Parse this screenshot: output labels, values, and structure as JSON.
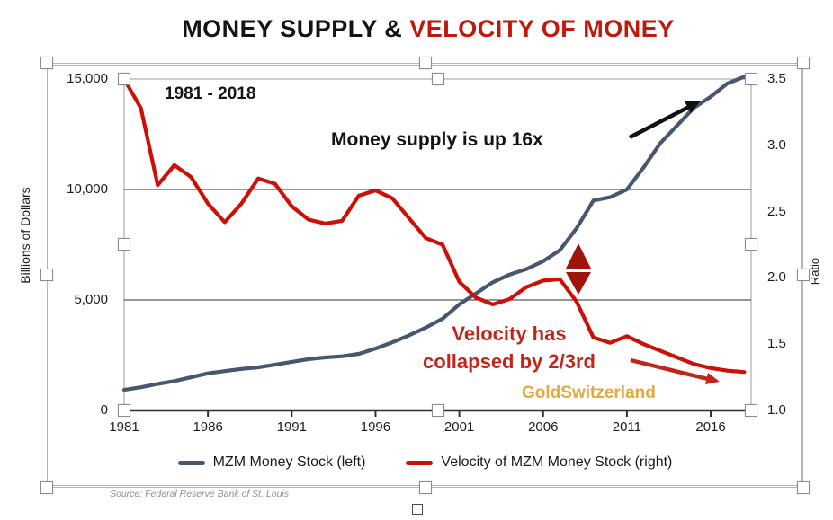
{
  "title": {
    "part_black": "MONEY SUPPLY & ",
    "part_red": "VELOCITY OF MONEY"
  },
  "chart_data": {
    "type": "line",
    "title": "MONEY SUPPLY & VELOCITY OF MONEY",
    "period_label": "1981 - 2018",
    "x": [
      1981,
      1982,
      1983,
      1984,
      1985,
      1986,
      1987,
      1988,
      1989,
      1990,
      1991,
      1992,
      1993,
      1994,
      1995,
      1996,
      1997,
      1998,
      1999,
      2000,
      2001,
      2002,
      2003,
      2004,
      2005,
      2006,
      2007,
      2008,
      2009,
      2010,
      2011,
      2012,
      2013,
      2014,
      2015,
      2016,
      2017,
      2018
    ],
    "series": [
      {
        "name": "MZM Money Stock (left)",
        "axis": "left",
        "color": "#46586f",
        "values": [
          930,
          1050,
          1200,
          1330,
          1500,
          1680,
          1780,
          1880,
          1950,
          2070,
          2200,
          2320,
          2400,
          2450,
          2560,
          2800,
          3080,
          3400,
          3750,
          4150,
          4800,
          5300,
          5800,
          6150,
          6400,
          6750,
          7250,
          8250,
          9500,
          9650,
          10000,
          11000,
          12100,
          12900,
          13700,
          14200,
          14800,
          15100
        ]
      },
      {
        "name": "Velocity of MZM Money Stock (right)",
        "axis": "right",
        "color": "#cc1005",
        "values": [
          3.5,
          3.28,
          2.7,
          2.85,
          2.76,
          2.56,
          2.42,
          2.56,
          2.75,
          2.71,
          2.54,
          2.44,
          2.41,
          2.43,
          2.62,
          2.66,
          2.6,
          2.45,
          2.3,
          2.25,
          1.97,
          1.85,
          1.8,
          1.84,
          1.93,
          1.98,
          1.99,
          1.82,
          1.55,
          1.51,
          1.56,
          1.5,
          1.45,
          1.4,
          1.35,
          1.32,
          1.3,
          1.29
        ]
      }
    ],
    "left_axis": {
      "label": "Billions of Dollars",
      "range": [
        0,
        15000
      ],
      "ticks": [
        {
          "value": 0,
          "label": "0"
        },
        {
          "value": 5000,
          "label": "5,000"
        },
        {
          "value": 10000,
          "label": "10,000"
        },
        {
          "value": 15000,
          "label": "15,000"
        }
      ]
    },
    "right_axis": {
      "label": "Ratio",
      "range": [
        1.0,
        3.5
      ],
      "ticks": [
        {
          "value": 1.0,
          "label": "1.0"
        },
        {
          "value": 1.5,
          "label": "1.5"
        },
        {
          "value": 2.0,
          "label": "2.0"
        },
        {
          "value": 2.5,
          "label": "2.5"
        },
        {
          "value": 3.0,
          "label": "3.0"
        },
        {
          "value": 3.5,
          "label": "3.5"
        }
      ]
    },
    "x_axis": {
      "range": [
        1981,
        2018
      ],
      "ticks": [
        {
          "value": 1981,
          "label": "1981"
        },
        {
          "value": 1986,
          "label": "1986"
        },
        {
          "value": 1991,
          "label": "1991"
        },
        {
          "value": 1996,
          "label": "1996"
        },
        {
          "value": 2001,
          "label": "2001"
        },
        {
          "value": 2006,
          "label": "2006"
        },
        {
          "value": 2011,
          "label": "2011"
        },
        {
          "value": 2016,
          "label": "2016"
        }
      ]
    },
    "gridlines": {
      "axis": "left",
      "values": [
        5000,
        10000
      ],
      "grid_on": true
    },
    "legend_position": "bottom",
    "annotations": [
      {
        "text": "1981 - 2018",
        "color": "#141414"
      },
      {
        "text": "Money supply is up 16x",
        "color": "#141414"
      },
      {
        "text": "Velocity has collapsed by 2/3rd",
        "color": "#c2261a"
      },
      {
        "text": "GoldSwitzerland",
        "color": "#e2a93e"
      }
    ]
  },
  "callouts": {
    "period": "1981 - 2018",
    "money_supply": "Money supply is up 16x",
    "velocity_line1": "Velocity has",
    "velocity_line2": "collapsed by 2/3rd",
    "brand": "GoldSwitzerland"
  },
  "source": "Source: Federal Reserve Bank of St. Louis",
  "colors": {
    "title_red": "#c0190c",
    "line_blue": "#46586f",
    "line_red": "#cc1005",
    "callout_red": "#c2261a",
    "gold": "#e2a93e",
    "dark_red_arrow": "#9e150b",
    "black_arrow": "#111111"
  }
}
